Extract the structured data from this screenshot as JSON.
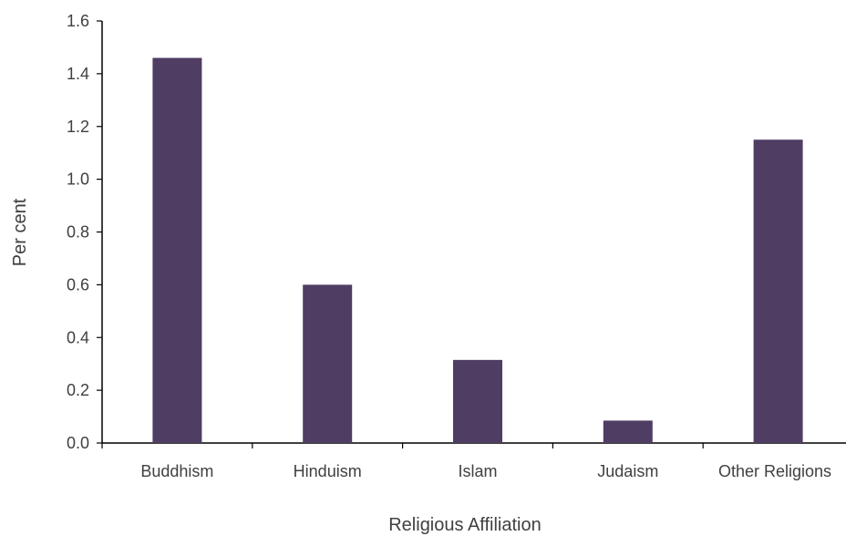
{
  "chart_data": {
    "type": "bar",
    "title": "",
    "xlabel": "Religious Affiliation",
    "ylabel": "Per cent",
    "categories": [
      "Buddhism",
      "Hinduism",
      "Islam",
      "Judaism",
      "Other Religions"
    ],
    "values": [
      1.46,
      0.6,
      0.315,
      0.085,
      1.15
    ],
    "ylim": [
      0,
      1.6
    ],
    "yticks": [
      "0.0",
      "0.2",
      "0.4",
      "0.6",
      "0.8",
      "1.0",
      "1.2",
      "1.4",
      "1.6"
    ],
    "bar_color": "#4f3d63",
    "axis_color": "#000000",
    "grid": false,
    "legend": "none"
  }
}
